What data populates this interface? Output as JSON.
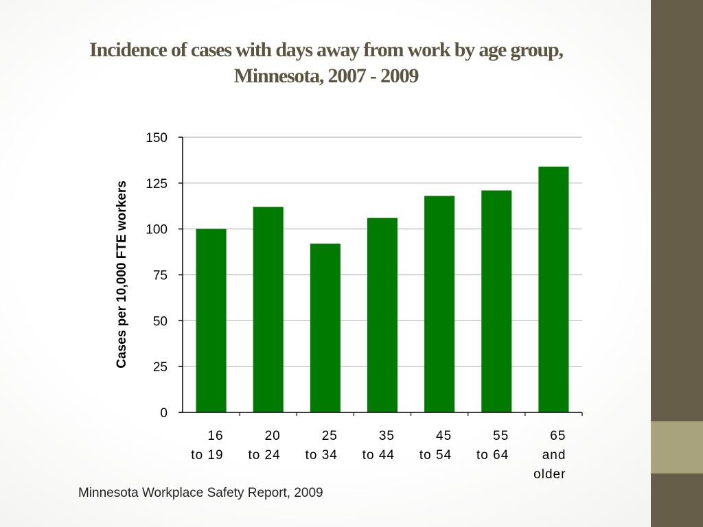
{
  "slide": {
    "title_line1": "Incidence of cases with days away from work by age group,",
    "title_line2": "Minnesota, 2007 - 2009",
    "source": "Minnesota Workplace Safety Report, 2009",
    "accent_colors": {
      "sidebar": "#665e48",
      "sidebar_accent": "#a8a27d",
      "title": "#5a5440"
    }
  },
  "chart_data": {
    "type": "bar",
    "title": "Incidence of cases with days away from work by age group, Minnesota, 2007 - 2009",
    "ylabel": "Cases per 10,000 FTE workers",
    "xlabel": "",
    "ylim": [
      0,
      150
    ],
    "yticks": [
      0,
      25,
      50,
      75,
      100,
      125,
      150
    ],
    "grid": true,
    "bar_color": "#007a00",
    "categories": [
      [
        "16",
        "to 19"
      ],
      [
        "20",
        "to 24"
      ],
      [
        "25",
        "to 34"
      ],
      [
        "35",
        "to 44"
      ],
      [
        "45",
        "to 54"
      ],
      [
        "55",
        "to 64"
      ],
      [
        "65",
        "and",
        "older"
      ]
    ],
    "values": [
      100,
      112,
      92,
      106,
      118,
      121,
      134
    ]
  }
}
